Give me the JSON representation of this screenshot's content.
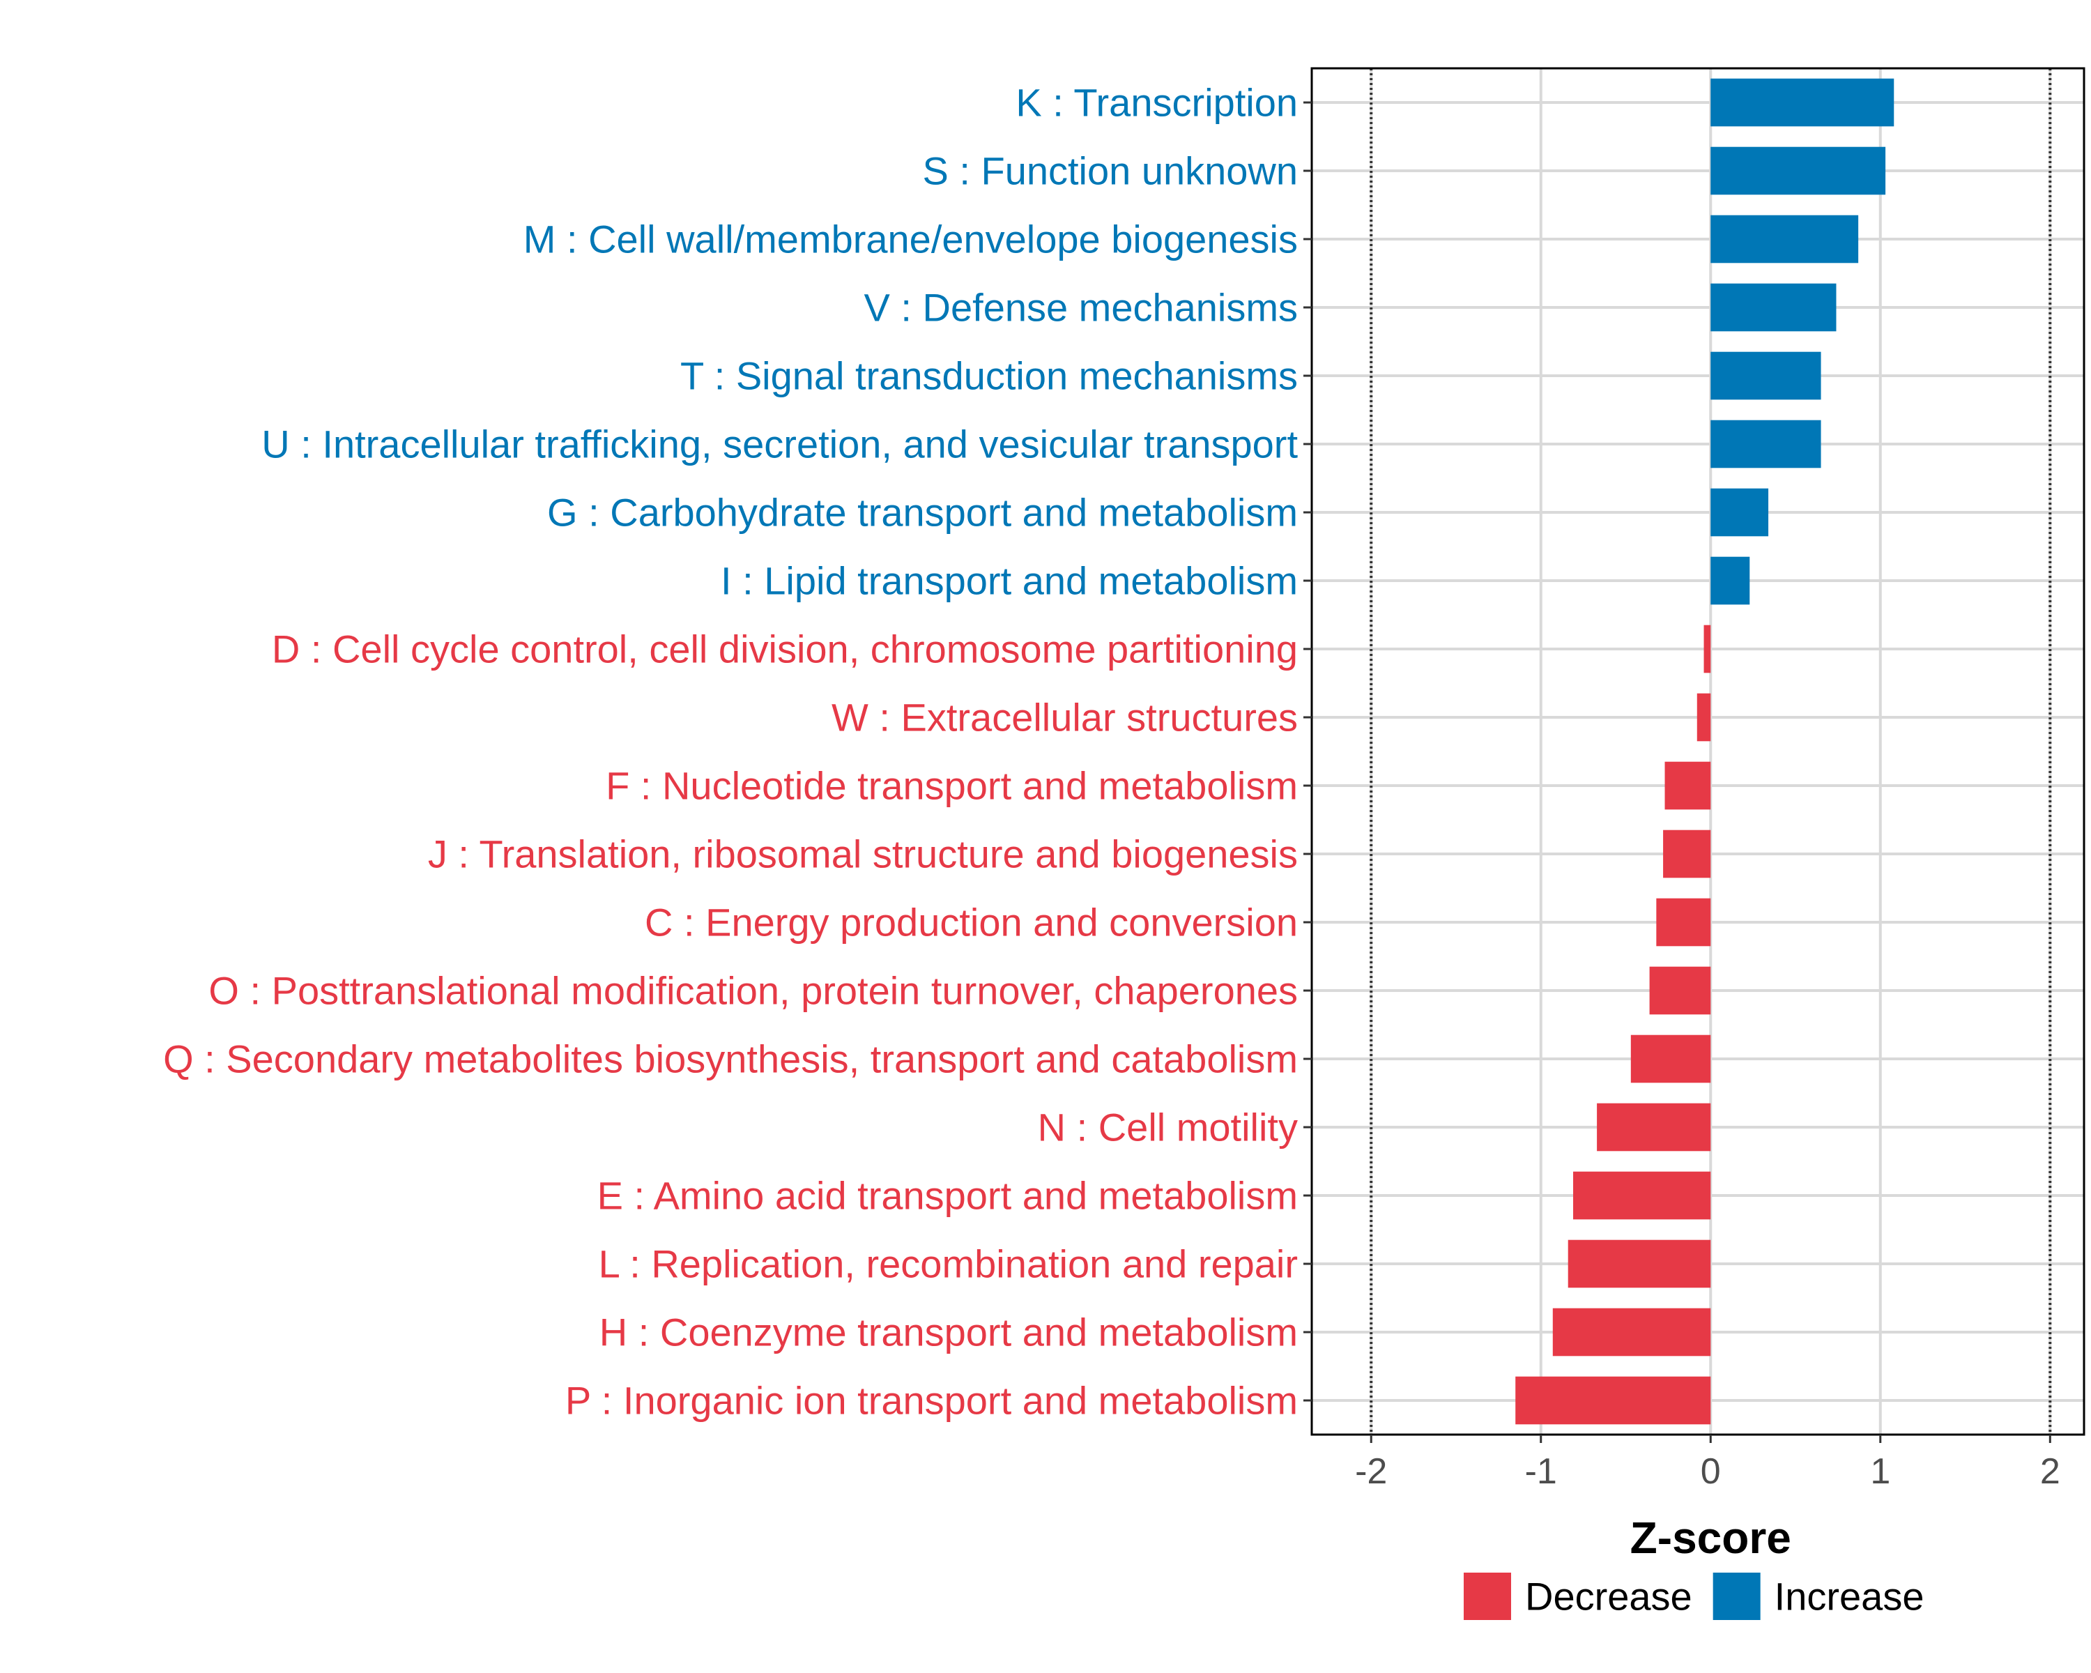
{
  "chart_data": {
    "type": "bar",
    "orientation": "horizontal",
    "xlabel": "Z-score",
    "xlim": [
      -2.35,
      2.2
    ],
    "xticks": [
      -2,
      -1,
      0,
      1,
      2
    ],
    "xtick_labels": [
      "-2",
      "-1",
      "0",
      "1",
      "2"
    ],
    "reference_lines": [
      -2,
      2
    ],
    "grid": true,
    "legend_position": "bottom",
    "colors": {
      "Decrease": "#e63946",
      "Increase": "#0077b6"
    },
    "legend": [
      {
        "label": "Decrease",
        "color": "#e63946"
      },
      {
        "label": "Increase",
        "color": "#0077b6"
      }
    ],
    "categories": [
      "K : Transcription",
      "S : Function unknown",
      "M : Cell wall/membrane/envelope biogenesis",
      "V : Defense mechanisms",
      "T : Signal transduction mechanisms",
      "U : Intracellular trafficking, secretion, and vesicular transport",
      "G : Carbohydrate transport and metabolism",
      "I : Lipid transport and metabolism",
      "D : Cell cycle control, cell division, chromosome partitioning",
      "W : Extracellular structures",
      "F : Nucleotide transport and metabolism",
      "J : Translation, ribosomal structure and biogenesis",
      "C : Energy production and conversion",
      "O : Posttranslational modification, protein turnover, chaperones",
      "Q : Secondary metabolites biosynthesis, transport and catabolism",
      "N : Cell motility",
      "E : Amino acid transport and metabolism",
      "L : Replication, recombination and repair",
      "H : Coenzyme transport and metabolism",
      "P : Inorganic ion transport and metabolism"
    ],
    "values": [
      1.08,
      1.03,
      0.87,
      0.74,
      0.65,
      0.65,
      0.34,
      0.23,
      -0.04,
      -0.08,
      -0.27,
      -0.28,
      -0.32,
      -0.36,
      -0.47,
      -0.67,
      -0.81,
      -0.84,
      -0.93,
      -1.15
    ],
    "groups": [
      "Increase",
      "Increase",
      "Increase",
      "Increase",
      "Increase",
      "Increase",
      "Increase",
      "Increase",
      "Decrease",
      "Decrease",
      "Decrease",
      "Decrease",
      "Decrease",
      "Decrease",
      "Decrease",
      "Decrease",
      "Decrease",
      "Decrease",
      "Decrease",
      "Decrease"
    ]
  }
}
